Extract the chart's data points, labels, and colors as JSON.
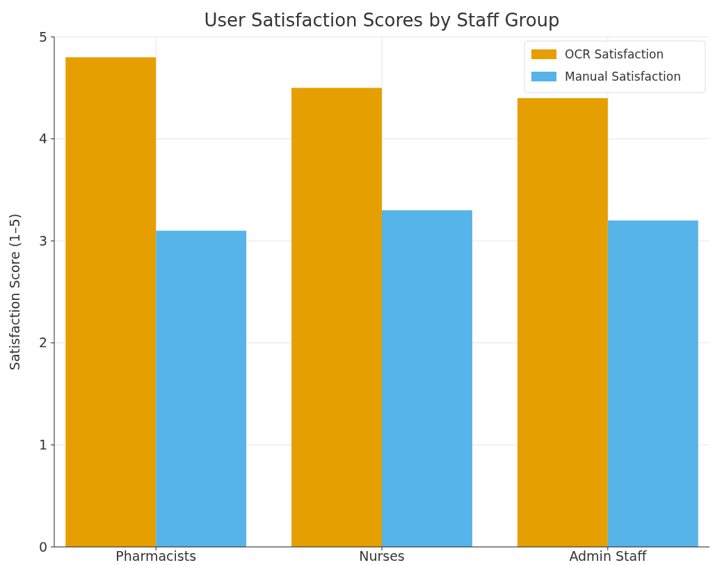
{
  "chart_data": {
    "type": "bar",
    "title": "User Satisfaction Scores by Staff Group",
    "ylabel": "Satisfaction Score (1–5)",
    "categories": [
      "Pharmacists",
      "Nurses",
      "Admin Staff"
    ],
    "series": [
      {
        "name": "OCR Satisfaction",
        "color": "#e69f00",
        "values": [
          4.8,
          4.5,
          4.4
        ]
      },
      {
        "name": "Manual Satisfaction",
        "color": "#56b4e9",
        "values": [
          3.1,
          3.3,
          3.2
        ]
      }
    ],
    "ylim": [
      0,
      5
    ],
    "yticks": [
      0,
      1,
      2,
      3,
      4,
      5
    ],
    "grid": true,
    "legend": "top right"
  }
}
